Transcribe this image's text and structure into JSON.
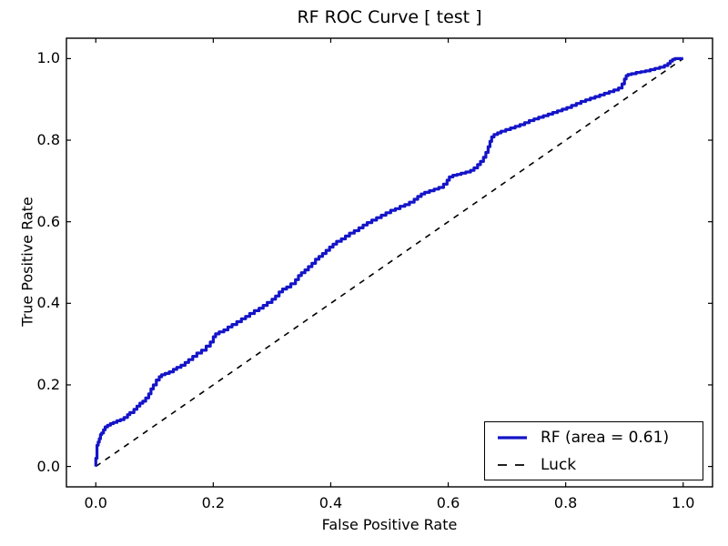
{
  "chart_data": {
    "type": "line",
    "title": "RF ROC Curve [ test ]",
    "xlabel": "False Positive Rate",
    "ylabel": "True Positive Rate",
    "xlim": [
      -0.05,
      1.05
    ],
    "ylim": [
      -0.05,
      1.05
    ],
    "xticks": [
      0.0,
      0.2,
      0.4,
      0.6,
      0.8,
      1.0
    ],
    "yticks": [
      0.0,
      0.2,
      0.4,
      0.6,
      0.8,
      1.0
    ],
    "xtick_labels": [
      "0.0",
      "0.2",
      "0.4",
      "0.6",
      "0.8",
      "1.0"
    ],
    "ytick_labels": [
      "0.0",
      "0.2",
      "0.4",
      "0.6",
      "0.8",
      "1.0"
    ],
    "grid": false,
    "legend_position": "lower right",
    "series": [
      {
        "name": "RF",
        "label": "RF (area = 0.61)",
        "auc": 0.61,
        "color": "#1414c8",
        "style": "solid",
        "line_width": 3.2,
        "draw": "steps",
        "points": [
          [
            0.0,
            0.0
          ],
          [
            0.002,
            0.02
          ],
          [
            0.002,
            0.045
          ],
          [
            0.004,
            0.052
          ],
          [
            0.006,
            0.06
          ],
          [
            0.008,
            0.068
          ],
          [
            0.01,
            0.078
          ],
          [
            0.013,
            0.082
          ],
          [
            0.016,
            0.09
          ],
          [
            0.02,
            0.097
          ],
          [
            0.025,
            0.101
          ],
          [
            0.03,
            0.105
          ],
          [
            0.036,
            0.108
          ],
          [
            0.042,
            0.112
          ],
          [
            0.048,
            0.115
          ],
          [
            0.054,
            0.12
          ],
          [
            0.058,
            0.127
          ],
          [
            0.065,
            0.132
          ],
          [
            0.07,
            0.14
          ],
          [
            0.075,
            0.148
          ],
          [
            0.08,
            0.155
          ],
          [
            0.085,
            0.16
          ],
          [
            0.09,
            0.168
          ],
          [
            0.094,
            0.178
          ],
          [
            0.098,
            0.19
          ],
          [
            0.103,
            0.2
          ],
          [
            0.108,
            0.212
          ],
          [
            0.112,
            0.22
          ],
          [
            0.118,
            0.225
          ],
          [
            0.125,
            0.228
          ],
          [
            0.132,
            0.232
          ],
          [
            0.138,
            0.238
          ],
          [
            0.145,
            0.243
          ],
          [
            0.152,
            0.248
          ],
          [
            0.158,
            0.255
          ],
          [
            0.165,
            0.262
          ],
          [
            0.172,
            0.27
          ],
          [
            0.18,
            0.278
          ],
          [
            0.188,
            0.285
          ],
          [
            0.195,
            0.295
          ],
          [
            0.2,
            0.305
          ],
          [
            0.204,
            0.318
          ],
          [
            0.21,
            0.325
          ],
          [
            0.218,
            0.33
          ],
          [
            0.225,
            0.335
          ],
          [
            0.232,
            0.342
          ],
          [
            0.24,
            0.348
          ],
          [
            0.248,
            0.355
          ],
          [
            0.255,
            0.362
          ],
          [
            0.262,
            0.368
          ],
          [
            0.27,
            0.375
          ],
          [
            0.278,
            0.382
          ],
          [
            0.285,
            0.388
          ],
          [
            0.292,
            0.395
          ],
          [
            0.3,
            0.402
          ],
          [
            0.306,
            0.41
          ],
          [
            0.312,
            0.418
          ],
          [
            0.318,
            0.428
          ],
          [
            0.325,
            0.435
          ],
          [
            0.332,
            0.44
          ],
          [
            0.34,
            0.448
          ],
          [
            0.345,
            0.458
          ],
          [
            0.35,
            0.468
          ],
          [
            0.356,
            0.475
          ],
          [
            0.362,
            0.482
          ],
          [
            0.368,
            0.49
          ],
          [
            0.374,
            0.498
          ],
          [
            0.38,
            0.508
          ],
          [
            0.386,
            0.515
          ],
          [
            0.392,
            0.522
          ],
          [
            0.398,
            0.53
          ],
          [
            0.404,
            0.538
          ],
          [
            0.41,
            0.545
          ],
          [
            0.418,
            0.552
          ],
          [
            0.425,
            0.558
          ],
          [
            0.432,
            0.565
          ],
          [
            0.44,
            0.572
          ],
          [
            0.448,
            0.578
          ],
          [
            0.455,
            0.585
          ],
          [
            0.462,
            0.592
          ],
          [
            0.47,
            0.598
          ],
          [
            0.478,
            0.604
          ],
          [
            0.486,
            0.61
          ],
          [
            0.494,
            0.616
          ],
          [
            0.502,
            0.622
          ],
          [
            0.51,
            0.628
          ],
          [
            0.518,
            0.632
          ],
          [
            0.526,
            0.638
          ],
          [
            0.534,
            0.642
          ],
          [
            0.542,
            0.648
          ],
          [
            0.548,
            0.655
          ],
          [
            0.554,
            0.662
          ],
          [
            0.56,
            0.668
          ],
          [
            0.568,
            0.672
          ],
          [
            0.576,
            0.676
          ],
          [
            0.584,
            0.68
          ],
          [
            0.592,
            0.684
          ],
          [
            0.598,
            0.692
          ],
          [
            0.602,
            0.702
          ],
          [
            0.608,
            0.71
          ],
          [
            0.615,
            0.714
          ],
          [
            0.622,
            0.716
          ],
          [
            0.63,
            0.719
          ],
          [
            0.638,
            0.722
          ],
          [
            0.644,
            0.726
          ],
          [
            0.65,
            0.732
          ],
          [
            0.655,
            0.74
          ],
          [
            0.66,
            0.748
          ],
          [
            0.664,
            0.758
          ],
          [
            0.668,
            0.77
          ],
          [
            0.671,
            0.784
          ],
          [
            0.674,
            0.797
          ],
          [
            0.678,
            0.808
          ],
          [
            0.684,
            0.814
          ],
          [
            0.69,
            0.818
          ],
          [
            0.698,
            0.822
          ],
          [
            0.706,
            0.826
          ],
          [
            0.714,
            0.83
          ],
          [
            0.722,
            0.834
          ],
          [
            0.73,
            0.838
          ],
          [
            0.738,
            0.843
          ],
          [
            0.746,
            0.848
          ],
          [
            0.754,
            0.852
          ],
          [
            0.762,
            0.856
          ],
          [
            0.77,
            0.86
          ],
          [
            0.778,
            0.864
          ],
          [
            0.786,
            0.868
          ],
          [
            0.794,
            0.872
          ],
          [
            0.802,
            0.876
          ],
          [
            0.81,
            0.88
          ],
          [
            0.818,
            0.885
          ],
          [
            0.826,
            0.89
          ],
          [
            0.834,
            0.895
          ],
          [
            0.842,
            0.899
          ],
          [
            0.85,
            0.903
          ],
          [
            0.858,
            0.907
          ],
          [
            0.866,
            0.911
          ],
          [
            0.874,
            0.915
          ],
          [
            0.882,
            0.919
          ],
          [
            0.89,
            0.923
          ],
          [
            0.896,
            0.928
          ],
          [
            0.9,
            0.938
          ],
          [
            0.903,
            0.95
          ],
          [
            0.906,
            0.958
          ],
          [
            0.912,
            0.961
          ],
          [
            0.92,
            0.963
          ],
          [
            0.928,
            0.966
          ],
          [
            0.936,
            0.968
          ],
          [
            0.944,
            0.97
          ],
          [
            0.952,
            0.973
          ],
          [
            0.96,
            0.976
          ],
          [
            0.968,
            0.979
          ],
          [
            0.974,
            0.983
          ],
          [
            0.978,
            0.988
          ],
          [
            0.982,
            0.994
          ],
          [
            0.986,
            0.998
          ],
          [
            0.99,
            1.0
          ],
          [
            1.0,
            1.0
          ]
        ]
      },
      {
        "name": "Luck",
        "label": "Luck",
        "color": "#000000",
        "style": "dashed",
        "line_width": 1.6,
        "draw": "linear",
        "points": [
          [
            0.0,
            0.0
          ],
          [
            1.0,
            1.0
          ]
        ]
      }
    ]
  }
}
